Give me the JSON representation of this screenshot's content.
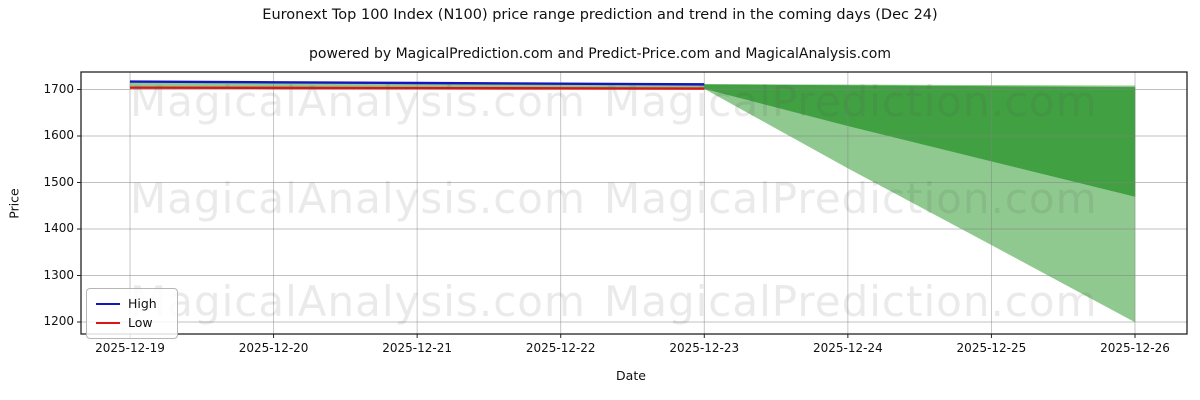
{
  "chart_data": {
    "type": "line",
    "title": "Euronext Top 100 Index (N100) price range prediction and trend in the coming days (Dec 24)",
    "subtitle": "powered by MagicalPrediction.com and Predict-Price.com and MagicalAnalysis.com",
    "xlabel": "Date",
    "ylabel": "Price",
    "x_ticks": [
      "2025-12-19",
      "2025-12-20",
      "2025-12-21",
      "2025-12-22",
      "2025-12-23",
      "2025-12-24",
      "2025-12-25",
      "2025-12-26"
    ],
    "y_ticks": [
      1200,
      1300,
      1400,
      1500,
      1600,
      1700
    ],
    "ylim": [
      1174,
      1738
    ],
    "grid": true,
    "legend_position": "lower left",
    "series": [
      {
        "name": "High",
        "color": "#1515c0",
        "x": [
          "2025-12-19",
          "2025-12-20",
          "2025-12-21",
          "2025-12-22",
          "2025-12-23"
        ],
        "values": [
          1717,
          1715.5,
          1714,
          1712.5,
          1711
        ]
      },
      {
        "name": "Low",
        "color": "#dd1515",
        "x": [
          "2025-12-19",
          "2025-12-20",
          "2025-12-21",
          "2025-12-22",
          "2025-12-23"
        ],
        "values": [
          1704,
          1703.5,
          1703,
          1702.5,
          1702
        ]
      }
    ],
    "bands": [
      {
        "name": "high-low-range",
        "color": "#8fc98f",
        "x": [
          "2025-12-19",
          "2025-12-20",
          "2025-12-21",
          "2025-12-22",
          "2025-12-23"
        ],
        "upper": [
          1717,
          1715.5,
          1714,
          1712.5,
          1711
        ],
        "lower": [
          1704,
          1703.5,
          1703,
          1702.5,
          1702
        ]
      },
      {
        "name": "outer-prediction-band",
        "color": "#8fc98f",
        "x": [
          "2025-12-23",
          "2025-12-24",
          "2025-12-25",
          "2025-12-26"
        ],
        "upper": [
          1711,
          1710,
          1709,
          1708
        ],
        "lower": [
          1702,
          1531,
          1366,
          1200
        ]
      },
      {
        "name": "inner-prediction-band",
        "color": "#41a041",
        "x": [
          "2025-12-23",
          "2025-12-24",
          "2025-12-25",
          "2025-12-26"
        ],
        "upper": [
          1710.5,
          1708.5,
          1706.5,
          1704.5
        ],
        "lower": [
          1702,
          1622,
          1546,
          1470
        ]
      }
    ],
    "watermarks": {
      "left": "MagicalAnalysis.com",
      "right": "MagicalPrediction.com"
    }
  }
}
